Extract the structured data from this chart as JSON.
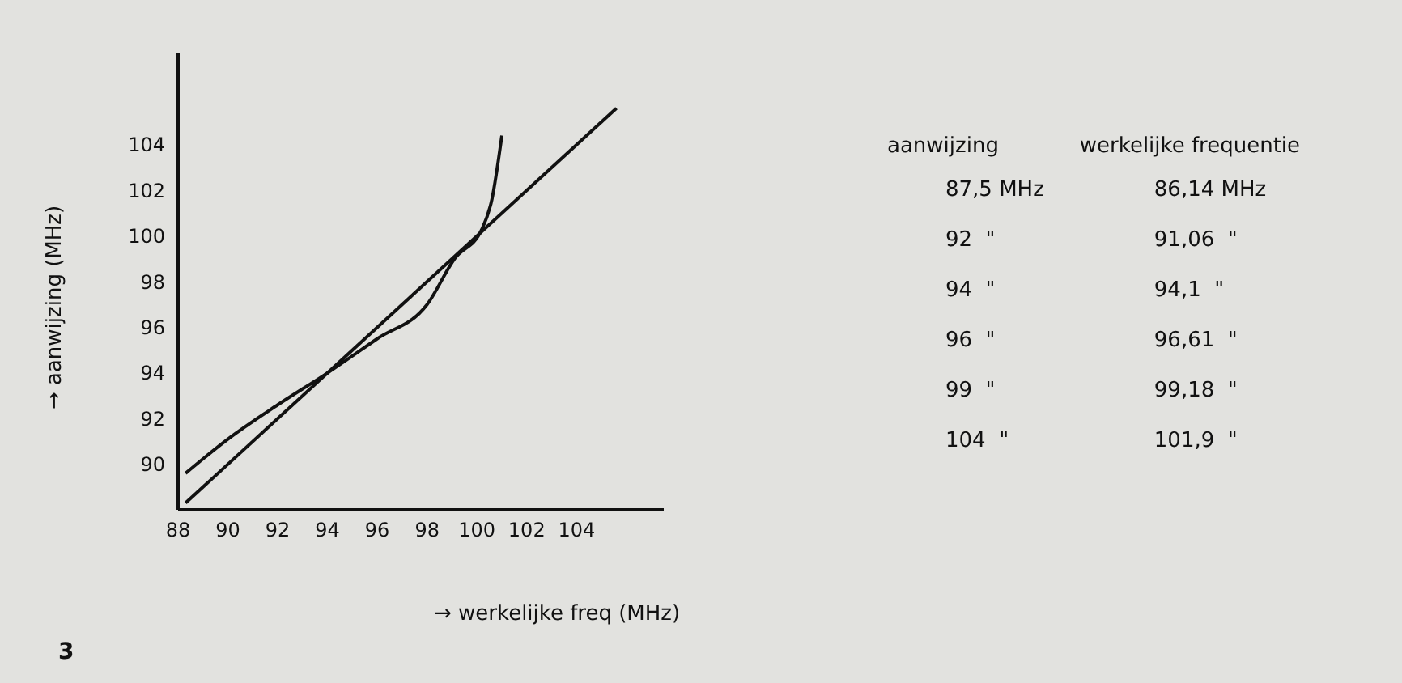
{
  "chart_data": {
    "type": "line",
    "xlabel": "→ werkelijke freq (MHz)",
    "ylabel": "→ aanwijzing (MHz)",
    "xlim": [
      88,
      107.5
    ],
    "ylim": [
      88,
      108
    ],
    "xticks": [
      88,
      90,
      92,
      94,
      96,
      98,
      100,
      102,
      104
    ],
    "yticks": [
      90,
      92,
      94,
      96,
      98,
      100,
      102,
      104
    ],
    "grid": false,
    "legend": false,
    "series": [
      {
        "color": "#111111",
        "x": [
          88.3,
          105.6
        ],
        "values": [
          88.3,
          105.6
        ]
      },
      {
        "color": "#111111",
        "x": [
          88.3,
          90,
          92,
          94,
          96,
          98,
          99.1,
          100.2,
          100.6,
          101
        ],
        "values": [
          89.6,
          91.1,
          92.6,
          94.0,
          95.5,
          97.0,
          99.0,
          100.3,
          101.6,
          104.4
        ]
      }
    ],
    "annotations": [
      "3",
      "aanwijzing",
      "werkelijke frequentie",
      "87,5 MHz",
      "86,14 MHz",
      "92  \"",
      "91,06  \"",
      "94  \"",
      "94,1  \"",
      "96  \"",
      "96,61  \"",
      "99  \"",
      "99,18  \"",
      "104  \"",
      "101,9  \""
    ]
  }
}
